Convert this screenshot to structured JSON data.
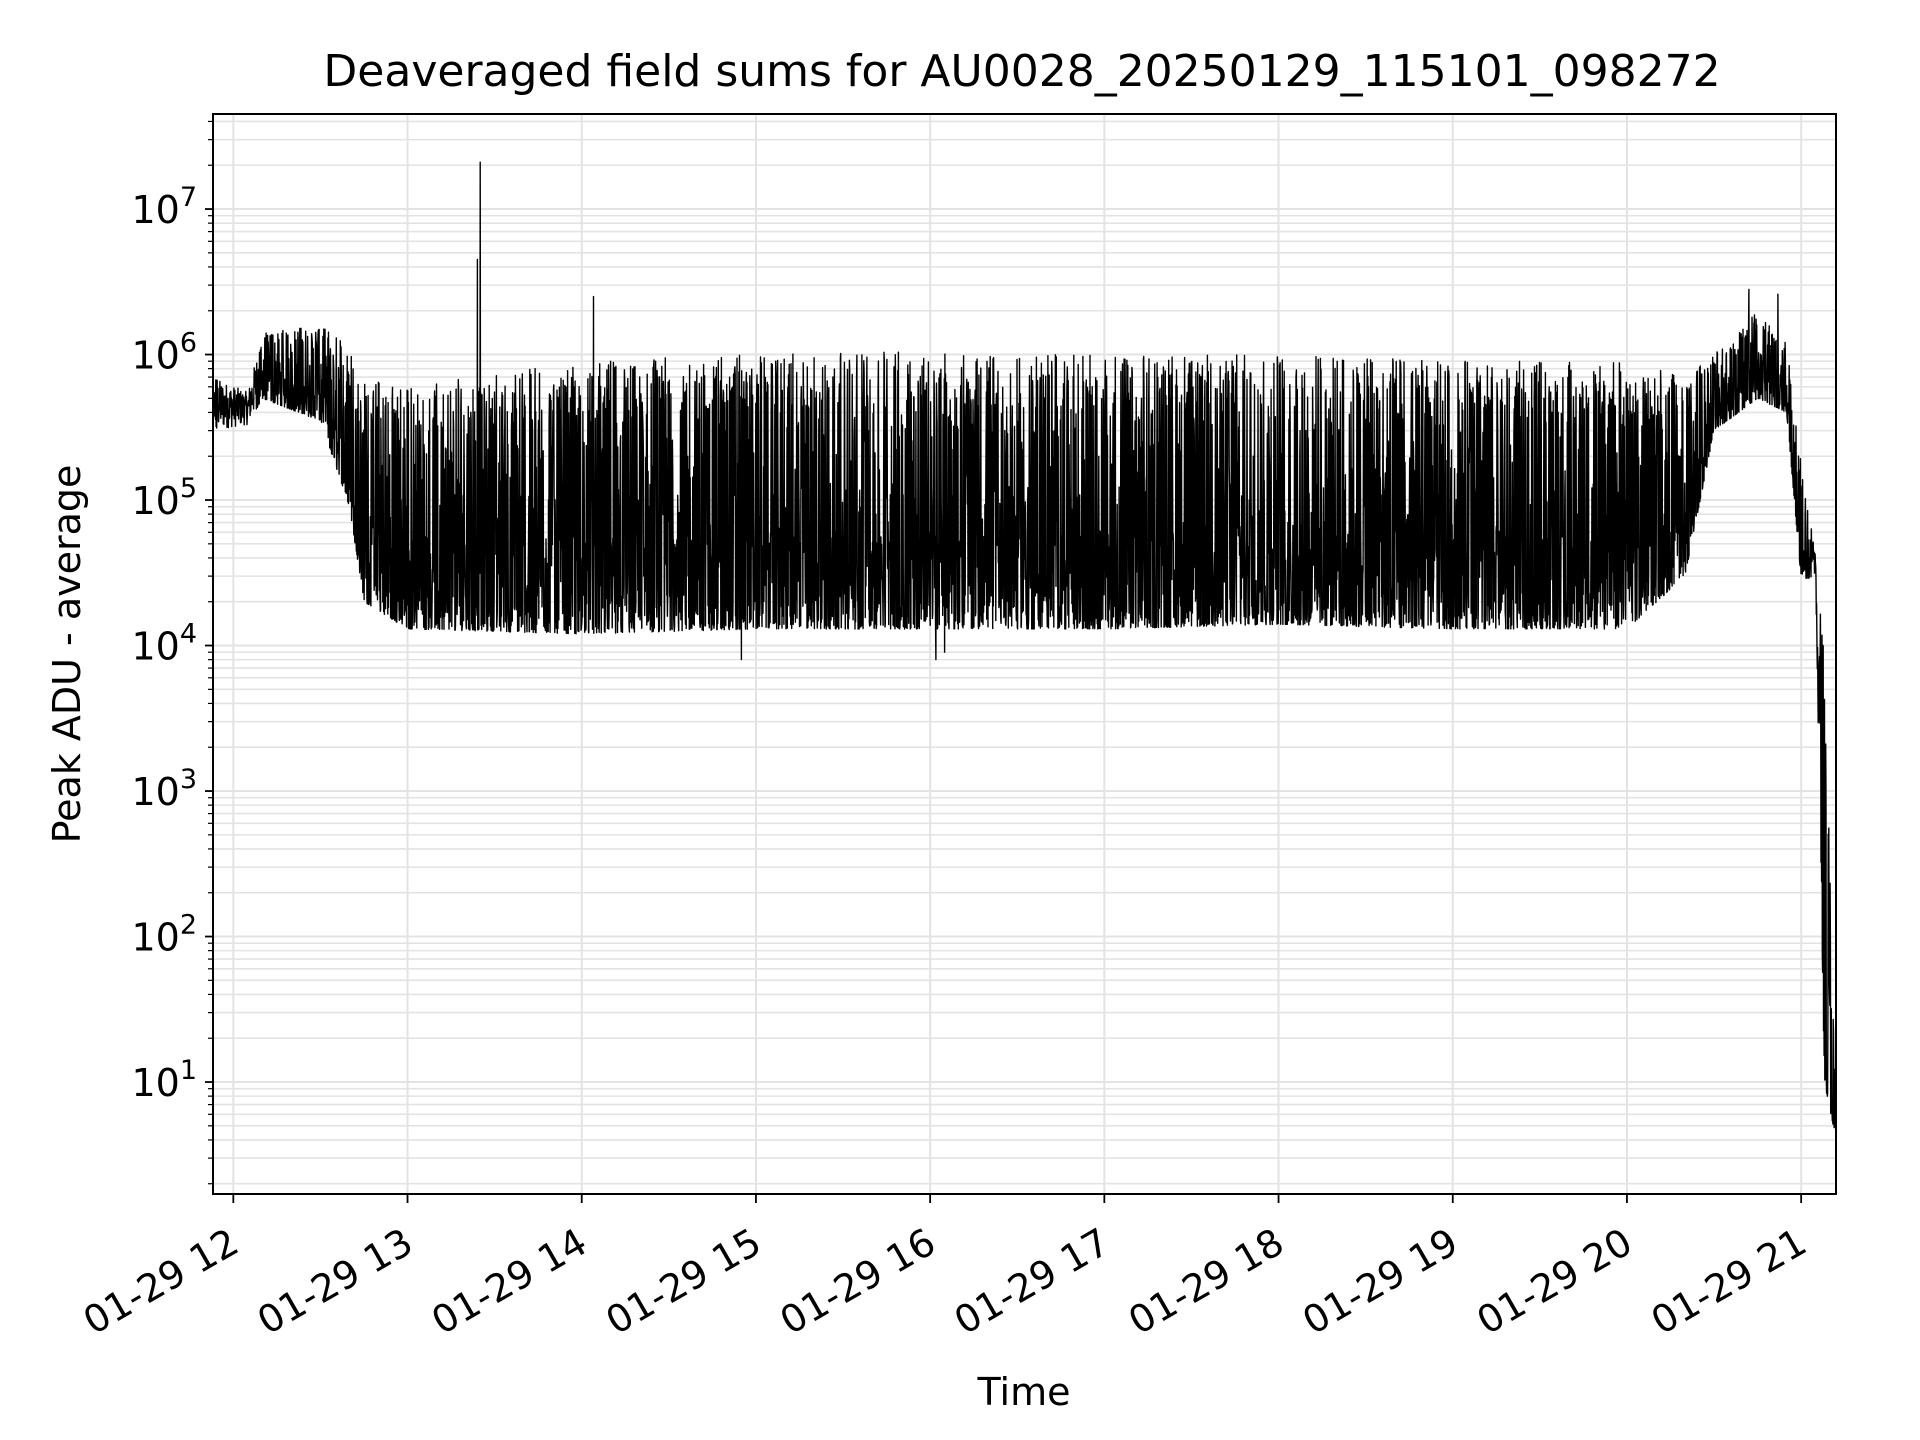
{
  "chart_data": {
    "type": "line",
    "title": "Deaveraged field sums for AU0028_20250129_115101_098272",
    "xlabel": "Time",
    "ylabel": "Peak ADU - average",
    "yscale": "log",
    "grid": true,
    "legend": "none",
    "xlim": [
      "2025-01-29 11:53",
      "2025-01-29 21:12"
    ],
    "ylim": [
      1.7,
      45000000
    ],
    "x_ticks": [
      "01-29 12",
      "01-29 13",
      "01-29 14",
      "01-29 15",
      "01-29 16",
      "01-29 17",
      "01-29 18",
      "01-29 19",
      "01-29 20",
      "01-29 21"
    ],
    "y_ticks": [
      {
        "base": "10",
        "exp": "1"
      },
      {
        "base": "10",
        "exp": "2"
      },
      {
        "base": "10",
        "exp": "3"
      },
      {
        "base": "10",
        "exp": "4"
      },
      {
        "base": "10",
        "exp": "5"
      },
      {
        "base": "10",
        "exp": "6"
      },
      {
        "base": "10",
        "exp": "7"
      }
    ],
    "series": [
      {
        "color": "#000000",
        "description": "dense fast-oscillating trace; envelope points (time, lower value, upper value)",
        "envelope": [
          {
            "x": "2025-01-29 11:53",
            "low": 300000,
            "high": 700000
          },
          {
            "x": "2025-01-29 12:05",
            "low": 330000,
            "high": 550000
          },
          {
            "x": "2025-01-29 12:10",
            "low": 500000,
            "high": 1400000
          },
          {
            "x": "2025-01-29 12:30",
            "low": 350000,
            "high": 1600000
          },
          {
            "x": "2025-01-29 12:40",
            "low": 90000,
            "high": 1200000
          },
          {
            "x": "2025-01-29 12:45",
            "low": 20000,
            "high": 700000
          },
          {
            "x": "2025-01-29 13:00",
            "low": 13000,
            "high": 600000
          },
          {
            "x": "2025-01-29 14:00",
            "low": 12000,
            "high": 900000
          },
          {
            "x": "2025-01-29 15:00",
            "low": 13000,
            "high": 1000000
          },
          {
            "x": "2025-01-29 16:00",
            "low": 13000,
            "high": 1050000
          },
          {
            "x": "2025-01-29 17:00",
            "low": 13000,
            "high": 1000000
          },
          {
            "x": "2025-01-29 18:00",
            "low": 14000,
            "high": 1000000
          },
          {
            "x": "2025-01-29 19:00",
            "low": 13000,
            "high": 900000
          },
          {
            "x": "2025-01-29 20:00",
            "low": 13000,
            "high": 900000
          },
          {
            "x": "2025-01-29 20:20",
            "low": 30000,
            "high": 700000
          },
          {
            "x": "2025-01-29 20:30",
            "low": 300000,
            "high": 1000000
          },
          {
            "x": "2025-01-29 20:45",
            "low": 500000,
            "high": 2000000
          },
          {
            "x": "2025-01-29 20:55",
            "low": 400000,
            "high": 1200000
          },
          {
            "x": "2025-01-29 21:00",
            "low": 28000,
            "high": 200000
          },
          {
            "x": "2025-01-29 21:05",
            "low": 30000,
            "high": 40000
          },
          {
            "x": "2025-01-29 21:08",
            "low": 10,
            "high": 20000
          },
          {
            "x": "2025-01-29 21:12",
            "low": 4,
            "high": 4
          }
        ],
        "spikes": [
          {
            "x": "2025-01-29 13:25",
            "value": 21000000
          },
          {
            "x": "2025-01-29 13:24",
            "value": 4500000
          },
          {
            "x": "2025-01-29 14:04",
            "value": 2500000
          },
          {
            "x": "2025-01-29 20:42",
            "value": 2800000
          },
          {
            "x": "2025-01-29 20:52",
            "value": 2600000
          }
        ],
        "dips": [
          {
            "x": "2025-01-29 14:55",
            "value": 8000
          },
          {
            "x": "2025-01-29 16:02",
            "value": 8000
          },
          {
            "x": "2025-01-29 16:05",
            "value": 9000
          }
        ]
      }
    ]
  }
}
